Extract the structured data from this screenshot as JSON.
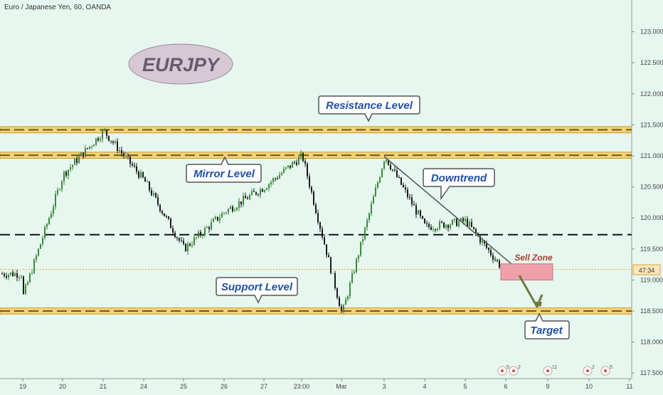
{
  "header": {
    "symbol_title": "Euro / Japanese Yen, 60, OANDA"
  },
  "badge": {
    "text": "EURJPY"
  },
  "labels": {
    "resistance": "Resistance Level",
    "mirror": "Mirror Level",
    "downtrend": "Downtrend",
    "support": "Support Level",
    "target": "Target",
    "sell_zone": "Sell Zone",
    "price_tag": "47:34"
  },
  "events": [
    {
      "label": "5",
      "date": "6"
    },
    {
      "label": "2",
      "date": "6"
    },
    {
      "label": "11",
      "date": "9"
    },
    {
      "label": "2",
      "date": "10"
    },
    {
      "label": "5",
      "date": "11"
    }
  ],
  "colors": {
    "background": "#e6f7ef",
    "band_fill": "#f4d27a",
    "band_border": "#c99b2a",
    "candle_up": "#3a8a3a",
    "candle_down": "#1a1a1a",
    "sell_zone": "#f0a0a8",
    "callout_text": "#1f4fa8",
    "sell_zone_text": "#b03a2e",
    "price_line": "#e2a23a"
  },
  "chart_data": {
    "type": "candlestick",
    "title": "Euro / Japanese Yen, 60, OANDA",
    "x_tick_labels": [
      "19",
      "20",
      "21",
      "24",
      "25",
      "26",
      "27",
      "23:00",
      "Mar",
      "3",
      "4",
      "5",
      "6",
      "9",
      "10",
      "11"
    ],
    "y_tick_labels": [
      "117.500",
      "118.000",
      "118.500",
      "119.000",
      "119.500",
      "120.000",
      "120.500",
      "121.000",
      "121.500",
      "122.000",
      "122.500",
      "123.000"
    ],
    "ylim": [
      117.45,
      123.45
    ],
    "grid": false,
    "levels": [
      {
        "name": "Resistance Level",
        "low": 121.37,
        "high": 121.47
      },
      {
        "name": "Mirror Level",
        "low": 120.96,
        "high": 121.06
      },
      {
        "name": "Support Level",
        "low": 118.45,
        "high": 118.55
      },
      {
        "name": "Midline",
        "price": 119.73
      }
    ],
    "current_price": 119.17,
    "sell_zone": {
      "low": 119.0,
      "high": 119.26
    },
    "downtrend_line": {
      "from": {
        "x": "3",
        "price": 120.99
      },
      "to": {
        "x": "6",
        "price": 119.17
      }
    },
    "target_price": 118.52,
    "key_points": [
      {
        "x": "19",
        "price": 118.75
      },
      {
        "x": "20",
        "price": 120.7
      },
      {
        "x": "21",
        "price": 121.4
      },
      {
        "x": "24",
        "price": 120.6
      },
      {
        "x": "25",
        "price": 119.5
      },
      {
        "x": "26",
        "price": 120.1
      },
      {
        "x": "27",
        "price": 120.5
      },
      {
        "x": "23:00",
        "price": 121.0
      },
      {
        "x": "Mar",
        "price": 118.45
      },
      {
        "x": "3",
        "price": 121.0
      },
      {
        "x": "4",
        "price": 119.85
      },
      {
        "x": "5",
        "price": 119.95
      },
      {
        "x": "6",
        "price": 119.1
      }
    ]
  }
}
